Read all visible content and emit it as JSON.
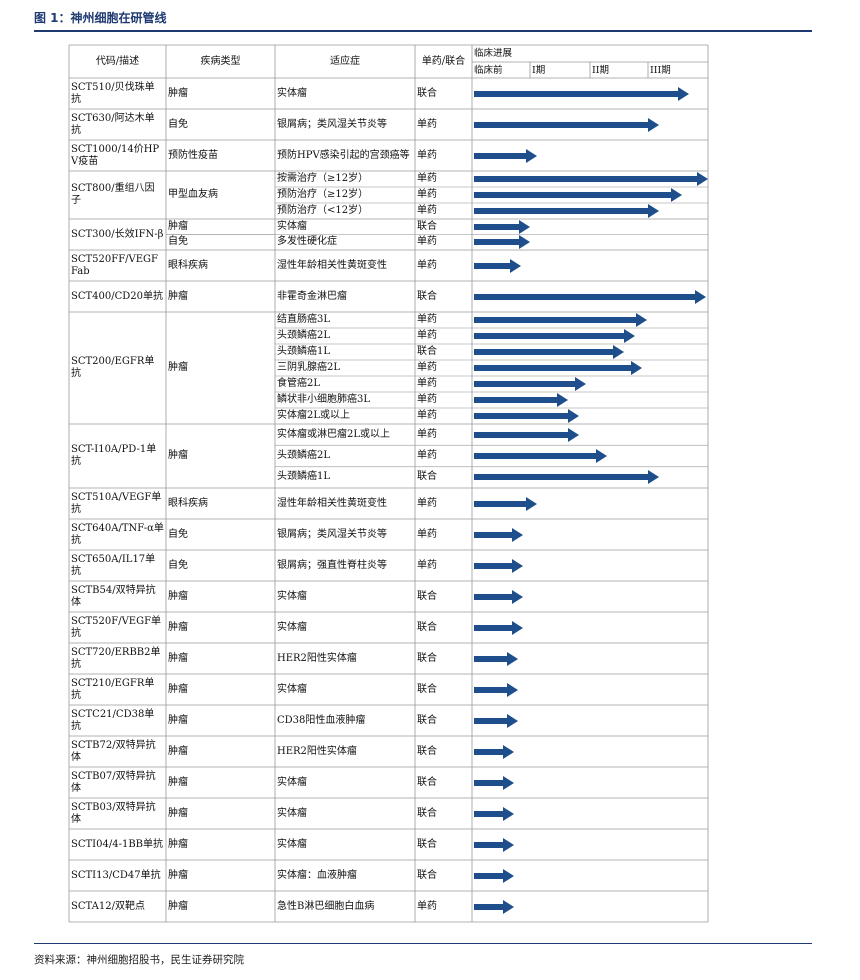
{
  "title": "图 1：神州细胞在研管线",
  "source": "资料来源：神州细胞招股书，民生证券研究院",
  "headers": {
    "code": "代码/描述",
    "disease": "疾病类型",
    "indication": "适应症",
    "mode": "单药/联合",
    "progress": "临床进展",
    "phases": [
      "临床前",
      "I期",
      "II期",
      "III期"
    ]
  },
  "groups": [
    {
      "code": "SCT510/贝伐珠单抗",
      "diseases": [
        "肿瘤"
      ],
      "rows": [
        {
          "ind": "实体瘤",
          "mode": "联合",
          "end": 0.92
        }
      ]
    },
    {
      "code": "SCT630/阿达木单抗",
      "diseases": [
        "自免"
      ],
      "rows": [
        {
          "ind": "银屑病；类风湿关节炎等",
          "mode": "单药",
          "end": 0.79
        }
      ]
    },
    {
      "code": "SCT1000/14价HPV疫苗",
      "diseases": [
        "预防性疫苗"
      ],
      "rows": [
        {
          "ind": "预防HPV感染引起的宫颈癌等",
          "mode": "单药",
          "end": 0.27
        }
      ]
    },
    {
      "code": "SCT800/重组八因子",
      "diseases": [
        "甲型血友病"
      ],
      "rows": [
        {
          "ind": "按需治疗（≥12岁）",
          "mode": "单药",
          "end": 1.0
        },
        {
          "ind": "预防治疗（≥12岁）",
          "mode": "单药",
          "end": 0.89
        },
        {
          "ind": "预防治疗（<12岁）",
          "mode": "单药",
          "end": 0.79
        }
      ]
    },
    {
      "code": "SCT300/长效IFN-β",
      "diseases": [
        "肿瘤",
        "自免"
      ],
      "rows": [
        {
          "ind": "实体瘤",
          "mode": "联合",
          "end": 0.24
        },
        {
          "ind": "多发性硬化症",
          "mode": "单药",
          "end": 0.24
        }
      ]
    },
    {
      "code": "SCT520FF/VEGF Fab",
      "diseases": [
        "眼科疾病"
      ],
      "rows": [
        {
          "ind": "湿性年龄相关性黄斑变性",
          "mode": "单药",
          "end": 0.2
        }
      ]
    },
    {
      "code": "SCT400/CD20单抗",
      "diseases": [
        "肿瘤"
      ],
      "rows": [
        {
          "ind": "非霍奇金淋巴瘤",
          "mode": "联合",
          "end": 0.99
        }
      ]
    },
    {
      "code": "SCT200/EGFR单抗",
      "diseases": [
        "肿瘤"
      ],
      "rows": [
        {
          "ind": "结直肠癌3L",
          "mode": "单药",
          "end": 0.74
        },
        {
          "ind": "头颈鳞癌2L",
          "mode": "单药",
          "end": 0.69
        },
        {
          "ind": "头颈鳞癌1L",
          "mode": "联合",
          "end": 0.64
        },
        {
          "ind": "三阴乳腺癌2L",
          "mode": "单药",
          "end": 0.72
        },
        {
          "ind": "食管癌2L",
          "mode": "单药",
          "end": 0.48
        },
        {
          "ind": "鳞状非小细胞肺癌3L",
          "mode": "单药",
          "end": 0.4
        },
        {
          "ind": "实体瘤2L或以上",
          "mode": "单药",
          "end": 0.45
        }
      ]
    },
    {
      "code": "SCT-I10A/PD-1单抗",
      "diseases": [
        "肿瘤"
      ],
      "rows": [
        {
          "ind": "实体瘤或淋巴瘤2L或以上",
          "mode": "单药",
          "end": 0.45
        },
        {
          "ind": "头颈鳞癌2L",
          "mode": "单药",
          "end": 0.57
        },
        {
          "ind": "头颈鳞癌1L",
          "mode": "联合",
          "end": 0.79
        }
      ]
    },
    {
      "code": "SCT510A/VEGF单抗",
      "diseases": [
        "眼科疾病"
      ],
      "rows": [
        {
          "ind": "湿性年龄相关性黄斑变性",
          "mode": "单药",
          "end": 0.27
        }
      ]
    },
    {
      "code": "SCT640A/TNF-α单抗",
      "diseases": [
        "自免"
      ],
      "rows": [
        {
          "ind": "银屑病；类风湿关节炎等",
          "mode": "单药",
          "end": 0.21
        }
      ]
    },
    {
      "code": "SCT650A/IL17单抗",
      "diseases": [
        "自免"
      ],
      "rows": [
        {
          "ind": "银屑病；强直性脊柱炎等",
          "mode": "单药",
          "end": 0.21
        }
      ]
    },
    {
      "code": "SCTB54/双特异抗体",
      "diseases": [
        "肿瘤"
      ],
      "rows": [
        {
          "ind": "实体瘤",
          "mode": "联合",
          "end": 0.21
        }
      ]
    },
    {
      "code": "SCT520F/VEGF单抗",
      "diseases": [
        "肿瘤"
      ],
      "rows": [
        {
          "ind": "实体瘤",
          "mode": "联合",
          "end": 0.21
        }
      ]
    },
    {
      "code": "SCT720/ERBB2单抗",
      "diseases": [
        "肿瘤"
      ],
      "rows": [
        {
          "ind": "HER2阳性实体瘤",
          "mode": "联合",
          "end": 0.19
        }
      ]
    },
    {
      "code": "SCT210/EGFR单抗",
      "diseases": [
        "肿瘤"
      ],
      "rows": [
        {
          "ind": "实体瘤",
          "mode": "联合",
          "end": 0.19
        }
      ]
    },
    {
      "code": "SCTC21/CD38单抗",
      "diseases": [
        "肿瘤"
      ],
      "rows": [
        {
          "ind": "CD38阳性血液肿瘤",
          "mode": "联合",
          "end": 0.19
        }
      ]
    },
    {
      "code": "SCTB72/双特异抗体",
      "diseases": [
        "肿瘤"
      ],
      "rows": [
        {
          "ind": "HER2阳性实体瘤",
          "mode": "联合",
          "end": 0.17
        }
      ]
    },
    {
      "code": "SCTB07/双特异抗体",
      "diseases": [
        "肿瘤"
      ],
      "rows": [
        {
          "ind": "实体瘤",
          "mode": "联合",
          "end": 0.17
        }
      ]
    },
    {
      "code": "SCTB03/双特异抗体",
      "diseases": [
        "肿瘤"
      ],
      "rows": [
        {
          "ind": "实体瘤",
          "mode": "联合",
          "end": 0.17
        }
      ]
    },
    {
      "code": "SCTI04/4-1BB单抗",
      "diseases": [
        "肿瘤"
      ],
      "rows": [
        {
          "ind": "实体瘤",
          "mode": "联合",
          "end": 0.17
        }
      ]
    },
    {
      "code": "SCTI13/CD47单抗",
      "diseases": [
        "肿瘤"
      ],
      "rows": [
        {
          "ind": "实体瘤：血液肿瘤",
          "mode": "联合",
          "end": 0.17
        }
      ]
    },
    {
      "code": "SCTA12/双靶点",
      "diseases": [
        "肿瘤"
      ],
      "rows": [
        {
          "ind": "急性B淋巴细胞白血病",
          "mode": "单药",
          "end": 0.17
        }
      ]
    }
  ]
}
